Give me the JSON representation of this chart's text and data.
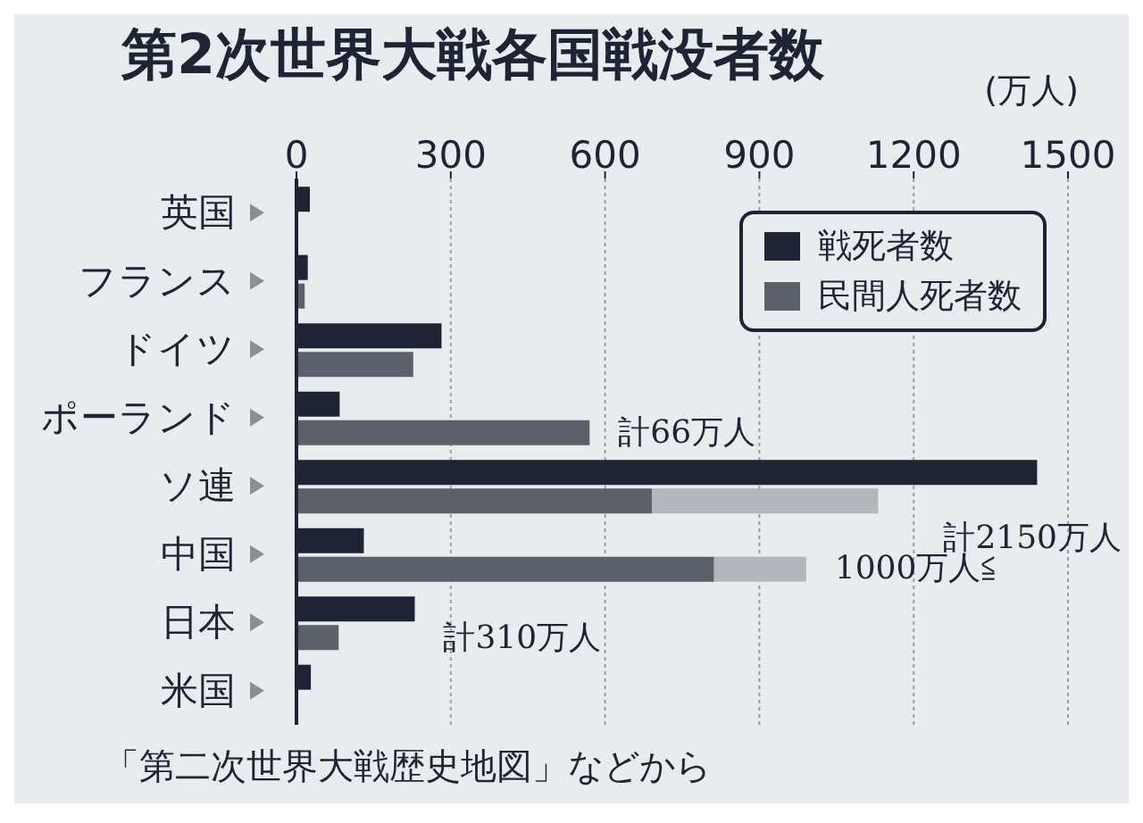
{
  "chart_data": {
    "type": "bar",
    "orientation": "horizontal",
    "title": "第2次世界大戦各国戦没者数",
    "xlabel": "(万人)",
    "categories": [
      "英国",
      "フランス",
      "ドイツ",
      "ポーランド",
      "ソ連",
      "中国",
      "日本",
      "米国"
    ],
    "series": [
      {
        "name": "戦死者数",
        "color": "#1e2433",
        "values": [
          26,
          22,
          282,
          84,
          1440,
          131,
          230,
          28
        ]
      },
      {
        "name": "民間人死者数",
        "color": "#5b6069",
        "values": [
          null,
          16,
          227,
          570,
          691,
          812,
          82,
          null
        ]
      },
      {
        "color": "#b4b8bd",
        "values": [
          null,
          null,
          null,
          null,
          440,
          179,
          null,
          null
        ],
        "base": [
          null,
          null,
          null,
          null,
          691,
          812,
          null,
          null
        ]
      }
    ],
    "xlim": [
      0,
      1500
    ],
    "xticks": [
      0,
      300,
      600,
      900,
      1200,
      1500
    ],
    "grid": "x",
    "legend": "top right",
    "annotations": [
      {
        "text": "計66万人",
        "x": 570,
        "y": "ポーランド"
      },
      {
        "text": "計2150万人",
        "x": 1440,
        "y": "ソ連"
      },
      {
        "text": "1000万人≦",
        "x": 991,
        "y": "中国"
      },
      {
        "text": "計310万人",
        "x": 230,
        "y": "日本"
      },
      "「第二次世界大戦歴史地図」などから"
    ]
  }
}
